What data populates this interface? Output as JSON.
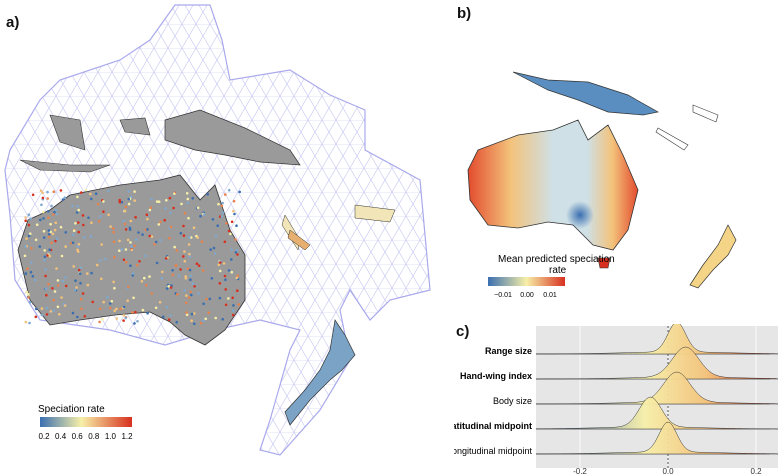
{
  "figure": {
    "panel_a": {
      "label": "a)",
      "legend": {
        "title": "Speciation rate",
        "ticks": [
          "0.2",
          "0.4",
          "0.6",
          "0.8",
          "1.0",
          "1.2"
        ]
      }
    },
    "panel_b": {
      "label": "b)",
      "legend": {
        "title_line1": "Mean predicted speciation",
        "title_line2": "rate",
        "ticks": [
          "−0.01",
          "0.00",
          "0.01"
        ]
      }
    },
    "panel_c": {
      "label": "c)",
      "rows": [
        {
          "label": "Range size",
          "bold": true
        },
        {
          "label": "Hand-wing index",
          "bold": true
        },
        {
          "label": "Body size",
          "bold": false
        },
        {
          "label": "Latitudinal midpoint",
          "bold": true
        },
        {
          "label": "Longitudinal midpoint",
          "bold": false
        }
      ],
      "x_ticks": [
        "-0.2",
        "0.0",
        "0.2"
      ]
    }
  },
  "colors": {
    "low": "#3a6fb0",
    "mid": "#f7efa8",
    "high": "#d7301f",
    "land_grey": "#9a9a9a",
    "mesh": "#b7b7e8",
    "panel_bg": "#e6e6e6"
  }
}
